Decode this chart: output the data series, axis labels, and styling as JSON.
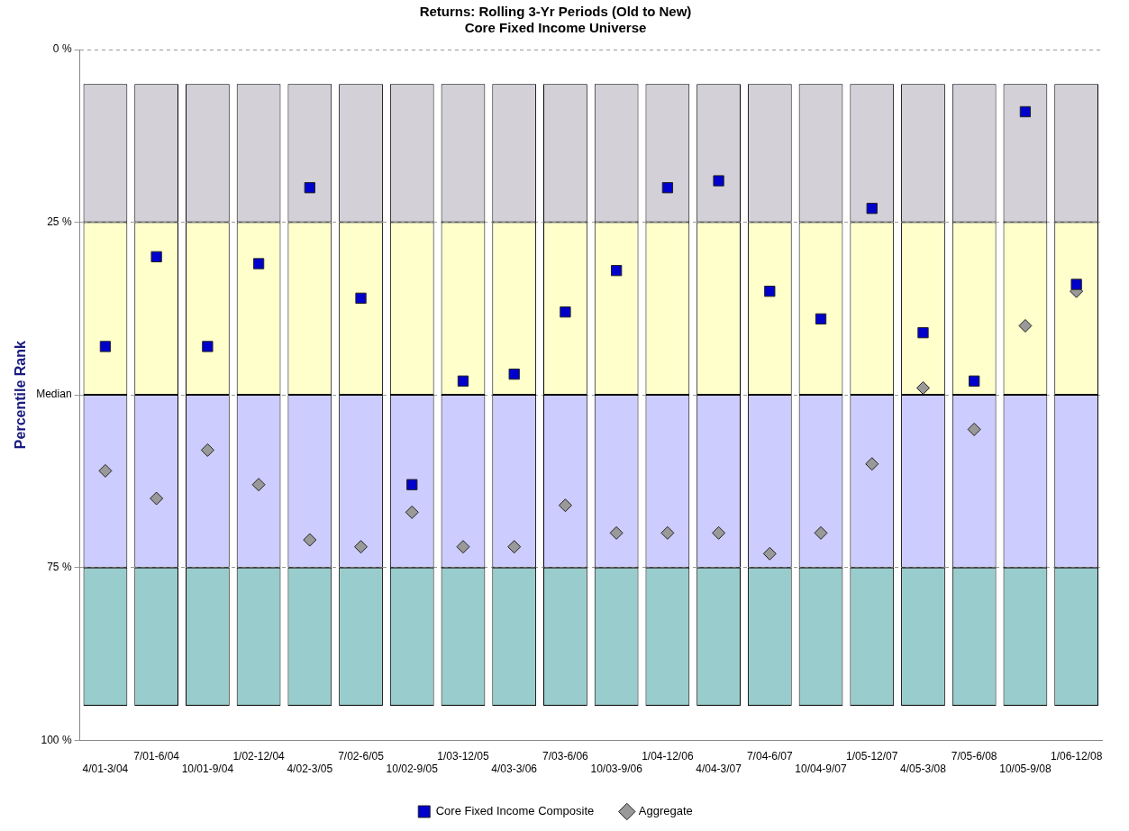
{
  "chart_data": {
    "type": "bar",
    "title": "Returns: Rolling 3-Yr Periods (Old to New)",
    "subtitle": "Core Fixed Income Universe",
    "ylabel": "Percentile Rank",
    "categories": [
      "4/01-3/04",
      "7/01-6/04",
      "10/01-9/04",
      "1/02-12/04",
      "4/02-3/05",
      "7/02-6/05",
      "10/02-9/05",
      "1/03-12/05",
      "4/03-3/06",
      "7/03-6/06",
      "10/03-9/06",
      "1/04-12/06",
      "4/04-3/07",
      "7/04-6/07",
      "10/04-9/07",
      "1/05-12/07",
      "4/05-3/08",
      "7/05-6/08",
      "10/05-9/08",
      "1/06-12/08"
    ],
    "ylim": [
      100,
      0
    ],
    "yticks": [
      {
        "value": 0,
        "label": "0 %"
      },
      {
        "value": 25,
        "label": "25 %"
      },
      {
        "value": 50,
        "label": "Median"
      },
      {
        "value": 75,
        "label": "75 %"
      },
      {
        "value": 100,
        "label": "100 %"
      }
    ],
    "grid": "y",
    "legend": "bottom",
    "series": [
      {
        "color": "#d4d0d8",
        "base": [
          5,
          5,
          5,
          5,
          5,
          5,
          5,
          5,
          5,
          5,
          5,
          5,
          5,
          5,
          5,
          5,
          5,
          5,
          5,
          5
        ],
        "values": [
          20,
          20,
          20,
          20,
          20,
          20,
          20,
          20,
          20,
          20,
          20,
          20,
          20,
          20,
          20,
          20,
          20,
          20,
          20,
          20
        ]
      },
      {
        "color": "#ffffcc",
        "base": [
          25,
          25,
          25,
          25,
          25,
          25,
          25,
          25,
          25,
          25,
          25,
          25,
          25,
          25,
          25,
          25,
          25,
          25,
          25,
          25
        ],
        "values": [
          25,
          25,
          25,
          25,
          25,
          25,
          25,
          25,
          25,
          25,
          25,
          25,
          25,
          25,
          25,
          25,
          25,
          25,
          25,
          25
        ]
      },
      {
        "color": "#ccccff",
        "base": [
          50,
          50,
          50,
          50,
          50,
          50,
          50,
          50,
          50,
          50,
          50,
          50,
          50,
          50,
          50,
          50,
          50,
          50,
          50,
          50
        ],
        "values": [
          25,
          25,
          25,
          25,
          25,
          25,
          25,
          25,
          25,
          25,
          25,
          25,
          25,
          25,
          25,
          25,
          25,
          25,
          25,
          25
        ]
      },
      {
        "color": "#99cccc",
        "base": [
          75,
          75,
          75,
          75,
          75,
          75,
          75,
          75,
          75,
          75,
          75,
          75,
          75,
          75,
          75,
          75,
          75,
          75,
          75,
          75
        ],
        "values": [
          20,
          20,
          20,
          20,
          20,
          20,
          20,
          20,
          20,
          20,
          20,
          20,
          20,
          20,
          20,
          20,
          20,
          20,
          20,
          20
        ]
      },
      {
        "type": "scatter",
        "name": "Core Fixed Income Composite",
        "color": "#0000cc",
        "marker": "square",
        "values": [
          43,
          30,
          43,
          31,
          20,
          36,
          63,
          48,
          47,
          38,
          32,
          20,
          19,
          35,
          39,
          23,
          41,
          48,
          9,
          34
        ]
      },
      {
        "type": "scatter",
        "name": "Aggregate",
        "color": "#999999",
        "marker": "diamond",
        "values": [
          61,
          65,
          58,
          63,
          71,
          72,
          67,
          72,
          72,
          66,
          70,
          70,
          70,
          73,
          70,
          60,
          49,
          55,
          40,
          35
        ]
      }
    ]
  }
}
